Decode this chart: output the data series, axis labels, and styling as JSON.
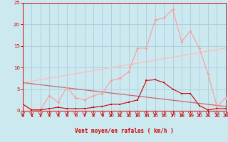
{
  "x": [
    0,
    1,
    2,
    3,
    4,
    5,
    6,
    7,
    8,
    9,
    10,
    11,
    12,
    13,
    14,
    15,
    16,
    17,
    18,
    19,
    20,
    21,
    22,
    23
  ],
  "wind_avg": [
    1.5,
    0.2,
    0.2,
    0.5,
    0.8,
    0.5,
    0.5,
    0.5,
    0.8,
    1.0,
    1.5,
    1.5,
    2.0,
    2.5,
    7.0,
    7.2,
    6.5,
    5.0,
    4.0,
    4.0,
    1.2,
    0.2,
    0.5,
    0.5
  ],
  "wind_gust": [
    1.5,
    0.2,
    0.2,
    3.5,
    2.0,
    5.5,
    3.0,
    2.5,
    3.5,
    4.0,
    7.0,
    7.5,
    9.0,
    14.5,
    14.5,
    21.0,
    21.5,
    23.5,
    16.0,
    18.5,
    14.5,
    8.5,
    1.0,
    3.0
  ],
  "trend_avg": [
    6.5,
    1.0
  ],
  "trend_gust": [
    6.5,
    14.5
  ],
  "bg_color": "#cce9f0",
  "grid_color": "#aaccdd",
  "line_color_avg": "#cc0000",
  "line_color_gust": "#ff9999",
  "trend_color_avg": "#cc6666",
  "trend_color_gust": "#ffbbbb",
  "xlabel": "Vent moyen/en rafales ( km/h )",
  "ylim": [
    0,
    25
  ],
  "xlim": [
    0,
    23
  ],
  "yticks": [
    0,
    5,
    10,
    15,
    20,
    25
  ],
  "xticks": [
    0,
    1,
    2,
    3,
    4,
    5,
    6,
    7,
    8,
    9,
    10,
    11,
    12,
    13,
    14,
    15,
    16,
    17,
    18,
    19,
    20,
    21,
    22,
    23
  ]
}
